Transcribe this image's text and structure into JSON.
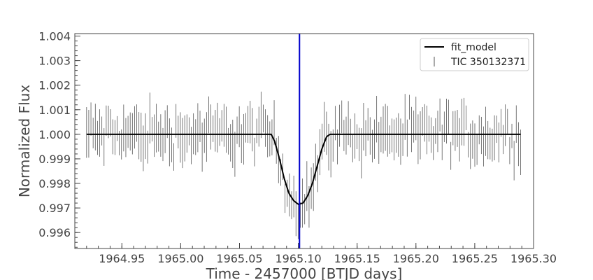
{
  "chart_data": {
    "type": "line",
    "title": "",
    "xlabel": "Time - 2457000 [BTJD days]",
    "ylabel": "Normalized Flux",
    "xlim": [
      1964.91,
      1965.3
    ],
    "ylim": [
      0.99535,
      1.0041
    ],
    "x_ticks": [
      1964.95,
      1965.0,
      1965.05,
      1965.1,
      1965.15,
      1965.2,
      1965.25,
      1965.3
    ],
    "x_tick_labels": [
      "1964.95",
      "1965.00",
      "1965.05",
      "1965.10",
      "1965.15",
      "1965.20",
      "1965.25",
      "1965.30"
    ],
    "y_ticks": [
      0.996,
      0.997,
      0.998,
      0.999,
      1.0,
      1.001,
      1.002,
      1.003,
      1.004
    ],
    "y_tick_labels": [
      "0.996",
      "0.997",
      "0.998",
      "0.999",
      "1.000",
      "1.001",
      "1.002",
      "1.003",
      "1.004"
    ],
    "grid": false,
    "legend_position": "top-right",
    "vertical_line": {
      "x": 1965.101,
      "color": "#0000cc"
    },
    "series": [
      {
        "name": "fit_model",
        "kind": "line",
        "color": "#000000",
        "x": [
          1964.92,
          1965.077,
          1965.08,
          1965.084,
          1965.088,
          1965.092,
          1965.096,
          1965.1,
          1965.104,
          1965.108,
          1965.112,
          1965.116,
          1965.12,
          1965.124,
          1965.127,
          1965.289
        ],
        "y": [
          1.0,
          1.0,
          0.9997,
          0.999,
          0.9982,
          0.9976,
          0.9973,
          0.99715,
          0.9972,
          0.9975,
          0.998,
          0.9987,
          0.9994,
          0.9999,
          1.0,
          1.0
        ]
      },
      {
        "name": "TIC 350132371",
        "kind": "errorbar",
        "color": "#555555",
        "x_start": 1964.92,
        "x_end": 1965.289,
        "count": 200,
        "mean_flux": 1.0,
        "typical_error": 0.0009
      }
    ]
  }
}
